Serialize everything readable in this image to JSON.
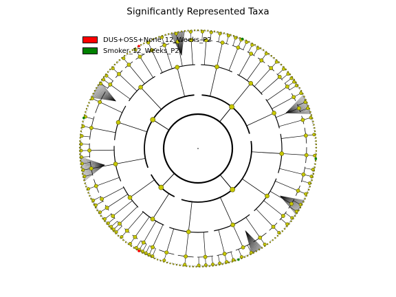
{
  "title": "Significantly Represented Taxa",
  "legend": [
    {
      "label": "DUS+OSS+None_12_Weeks_P2",
      "color": "#ff0000"
    },
    {
      "label": "Smoker_12_Weeks_P2",
      "color": "#008000"
    }
  ],
  "colors": {
    "node_fill": "#c8c800",
    "node_stroke": "#555500",
    "edge": "#000000",
    "leaf_dense": "#111111",
    "enriched_group_1": "#ff0000",
    "enriched_group_2": "#008000"
  },
  "diagram_type": "circular cladogram",
  "rank_levels": 6
}
